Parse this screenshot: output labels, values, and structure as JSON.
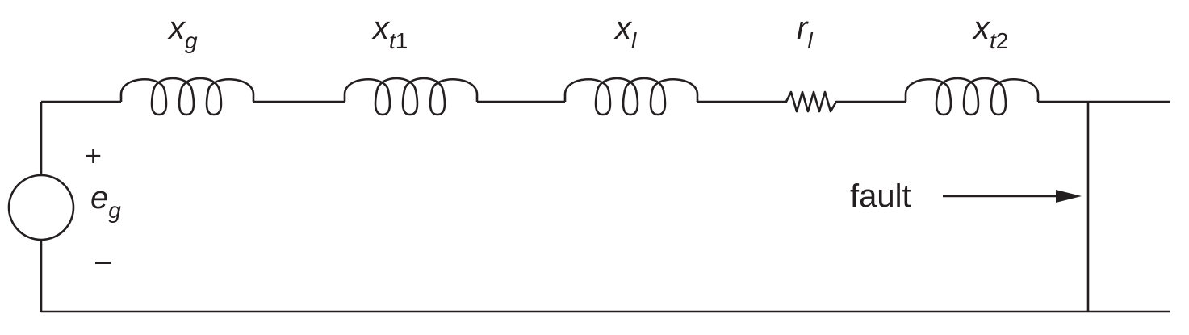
{
  "components": {
    "xg": {
      "main": "x",
      "sub": "g"
    },
    "xt1": {
      "main": "x",
      "sub": "t",
      "sub_upright": "1"
    },
    "xl": {
      "main": "x",
      "sub": "l"
    },
    "rl": {
      "main": "r",
      "sub": "l"
    },
    "xt2": {
      "main": "x",
      "sub": "t",
      "sub_upright": "2"
    }
  },
  "source": {
    "main": "e",
    "sub": "g",
    "plus": "+",
    "minus": "–"
  },
  "fault_label": "fault"
}
